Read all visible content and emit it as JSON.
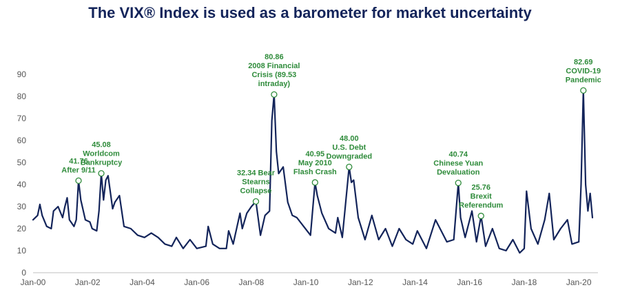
{
  "chart_data": {
    "type": "line",
    "title": "The VIX® Index is used as a barometer for market uncertainty",
    "xlabel": "",
    "ylabel": "",
    "ylim": [
      0,
      90
    ],
    "yticks": [
      0,
      10,
      20,
      30,
      40,
      50,
      60,
      70,
      80,
      90
    ],
    "xlim": [
      "2000-01",
      "2020-07"
    ],
    "xticks": [
      {
        "label": "Jan-00",
        "date": "2000-01"
      },
      {
        "label": "Jan-02",
        "date": "2002-01"
      },
      {
        "label": "Jan-04",
        "date": "2004-01"
      },
      {
        "label": "Jan-06",
        "date": "2006-01"
      },
      {
        "label": "Jan-08",
        "date": "2008-01"
      },
      {
        "label": "Jan-10",
        "date": "2010-01"
      },
      {
        "label": "Jan-12",
        "date": "2012-01"
      },
      {
        "label": "Jan-14",
        "date": "2014-01"
      },
      {
        "label": "Jan-16",
        "date": "2016-01"
      },
      {
        "label": "Jan-18",
        "date": "2018-01"
      },
      {
        "label": "Jan-20",
        "date": "2020-01"
      }
    ],
    "grid": false,
    "legend": "none",
    "line_color": "#13245a",
    "annotation_color": "#2e8b3a",
    "series": [
      {
        "points": [
          [
            "2000-01",
            24
          ],
          [
            "2000-03",
            26
          ],
          [
            "2000-04",
            31
          ],
          [
            "2000-05",
            26
          ],
          [
            "2000-07",
            21
          ],
          [
            "2000-09",
            20
          ],
          [
            "2000-10",
            28
          ],
          [
            "2000-12",
            30
          ],
          [
            "2001-02",
            25
          ],
          [
            "2001-03",
            30
          ],
          [
            "2001-04",
            34
          ],
          [
            "2001-05",
            24
          ],
          [
            "2001-07",
            21
          ],
          [
            "2001-08",
            24
          ],
          [
            "2001-09",
            41.76
          ],
          [
            "2001-10",
            33
          ],
          [
            "2001-12",
            24
          ],
          [
            "2002-02",
            23
          ],
          [
            "2002-03",
            20
          ],
          [
            "2002-05",
            19
          ],
          [
            "2002-06",
            28
          ],
          [
            "2002-07",
            45.08
          ],
          [
            "2002-08",
            33
          ],
          [
            "2002-09",
            42
          ],
          [
            "2002-10",
            44
          ],
          [
            "2002-12",
            29
          ],
          [
            "2003-01",
            32
          ],
          [
            "2003-03",
            35
          ],
          [
            "2003-05",
            21
          ],
          [
            "2003-08",
            20
          ],
          [
            "2003-11",
            17
          ],
          [
            "2004-02",
            16
          ],
          [
            "2004-05",
            18
          ],
          [
            "2004-08",
            16
          ],
          [
            "2004-11",
            13
          ],
          [
            "2005-02",
            12
          ],
          [
            "2005-04",
            16
          ],
          [
            "2005-07",
            11
          ],
          [
            "2005-10",
            15
          ],
          [
            "2006-01",
            11
          ],
          [
            "2006-05",
            12
          ],
          [
            "2006-06",
            21
          ],
          [
            "2006-08",
            13
          ],
          [
            "2006-11",
            11
          ],
          [
            "2007-02",
            11
          ],
          [
            "2007-03",
            19
          ],
          [
            "2007-05",
            13
          ],
          [
            "2007-08",
            27
          ],
          [
            "2007-09",
            20
          ],
          [
            "2007-11",
            27
          ],
          [
            "2008-01",
            30
          ],
          [
            "2008-03",
            32.34
          ],
          [
            "2008-05",
            17
          ],
          [
            "2008-07",
            26
          ],
          [
            "2008-09",
            28
          ],
          [
            "2008-10",
            69
          ],
          [
            "2008-11",
            80.86
          ],
          [
            "2008-12",
            55
          ],
          [
            "2009-01",
            45
          ],
          [
            "2009-03",
            48
          ],
          [
            "2009-05",
            32
          ],
          [
            "2009-07",
            26
          ],
          [
            "2009-09",
            25
          ],
          [
            "2009-12",
            21
          ],
          [
            "2010-03",
            17
          ],
          [
            "2010-05",
            40.95
          ],
          [
            "2010-06",
            35
          ],
          [
            "2010-08",
            27
          ],
          [
            "2010-11",
            20
          ],
          [
            "2011-02",
            18
          ],
          [
            "2011-03",
            25
          ],
          [
            "2011-05",
            16
          ],
          [
            "2011-08",
            48.0
          ],
          [
            "2011-09",
            41
          ],
          [
            "2011-10",
            42
          ],
          [
            "2011-12",
            25
          ],
          [
            "2012-03",
            15
          ],
          [
            "2012-06",
            26
          ],
          [
            "2012-09",
            15
          ],
          [
            "2012-12",
            20
          ],
          [
            "2013-03",
            12
          ],
          [
            "2013-06",
            20
          ],
          [
            "2013-09",
            15
          ],
          [
            "2013-12",
            13
          ],
          [
            "2014-02",
            19
          ],
          [
            "2014-06",
            11
          ],
          [
            "2014-10",
            24
          ],
          [
            "2014-12",
            20
          ],
          [
            "2015-03",
            14
          ],
          [
            "2015-06",
            15
          ],
          [
            "2015-08",
            40.74
          ],
          [
            "2015-09",
            25
          ],
          [
            "2015-11",
            16
          ],
          [
            "2016-02",
            28
          ],
          [
            "2016-04",
            14
          ],
          [
            "2016-06",
            25.76
          ],
          [
            "2016-08",
            12
          ],
          [
            "2016-11",
            20
          ],
          [
            "2017-02",
            11
          ],
          [
            "2017-05",
            10
          ],
          [
            "2017-08",
            15
          ],
          [
            "2017-11",
            9
          ],
          [
            "2018-01",
            11
          ],
          [
            "2018-02",
            37
          ],
          [
            "2018-04",
            20
          ],
          [
            "2018-07",
            13
          ],
          [
            "2018-10",
            24
          ],
          [
            "2018-12",
            36
          ],
          [
            "2019-02",
            15
          ],
          [
            "2019-05",
            20
          ],
          [
            "2019-08",
            24
          ],
          [
            "2019-10",
            13
          ],
          [
            "2020-01",
            14
          ],
          [
            "2020-02",
            40
          ],
          [
            "2020-03",
            82.69
          ],
          [
            "2020-04",
            40
          ],
          [
            "2020-05",
            28
          ],
          [
            "2020-06",
            36
          ],
          [
            "2020-07",
            25
          ]
        ]
      }
    ],
    "annotations": [
      {
        "date": "2001-09",
        "value": 41.76,
        "lines": [
          "41.76",
          "After 9/11"
        ]
      },
      {
        "date": "2002-07",
        "value": 45.08,
        "lines": [
          "45.08",
          "Worldcom",
          "Bankruptcy"
        ]
      },
      {
        "date": "2008-03",
        "value": 32.34,
        "lines": [
          "32.34 Bear",
          "Stearns",
          "Collapse"
        ]
      },
      {
        "date": "2008-11",
        "value": 80.86,
        "lines": [
          "80.86",
          "2008 Financial",
          "Crisis (89.53",
          "intraday)"
        ]
      },
      {
        "date": "2010-05",
        "value": 40.95,
        "lines": [
          "40.95",
          "May 2010",
          "Flash Crash"
        ]
      },
      {
        "date": "2011-08",
        "value": 48.0,
        "lines": [
          "48.00",
          "U.S. Debt",
          "Downgraded"
        ]
      },
      {
        "date": "2015-08",
        "value": 40.74,
        "lines": [
          "40.74",
          "Chinese Yuan",
          "Devaluation"
        ]
      },
      {
        "date": "2016-06",
        "value": 25.76,
        "lines": [
          "25.76",
          "Brexit",
          "Referendum"
        ]
      },
      {
        "date": "2020-03",
        "value": 82.69,
        "lines": [
          "82.69",
          "COVID-19",
          "Pandemic"
        ]
      }
    ]
  }
}
